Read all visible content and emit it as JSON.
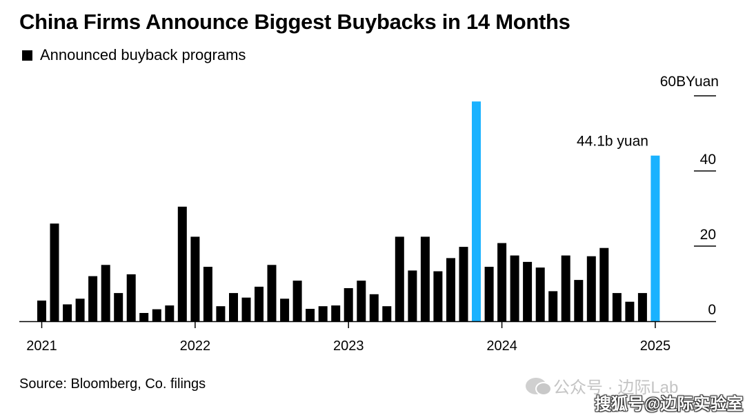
{
  "chart_data": {
    "type": "bar",
    "title": "China Firms Announce Biggest Buybacks in 14 Months",
    "legend": "Announced buyback programs",
    "y_unit_label": "60BYuan",
    "y_ticks": [
      {
        "value": 0,
        "label": "0"
      },
      {
        "value": 20,
        "label": "20"
      },
      {
        "value": 40,
        "label": "40"
      },
      {
        "value": 60,
        "label": ""
      }
    ],
    "ylim": [
      0,
      60
    ],
    "x_year_labels": [
      {
        "index": 0,
        "label": "2021"
      },
      {
        "index": 12,
        "label": "2022"
      },
      {
        "index": 24,
        "label": "2023"
      },
      {
        "index": 36,
        "label": "2024"
      },
      {
        "index": 48,
        "label": "2025"
      }
    ],
    "values": [
      5.5,
      26,
      4.5,
      6,
      12,
      15,
      7.5,
      12.5,
      2.2,
      3.2,
      4.2,
      30.5,
      22.5,
      14.5,
      4,
      7.5,
      6.3,
      9.2,
      15,
      6,
      10.8,
      3.3,
      4,
      4.2,
      8.8,
      10.8,
      7.2,
      4,
      22.5,
      13.5,
      22.5,
      13.3,
      16.8,
      19.8,
      58.5,
      14.5,
      20.8,
      17.5,
      15.8,
      14.3,
      8,
      17.5,
      11,
      17.3,
      19.5,
      7.5,
      5.2,
      7.5,
      44.1
    ],
    "highlight_indices": [
      34,
      48
    ],
    "bar_color": "#000000",
    "highlight_color": "#1ab2ff",
    "annotation": {
      "index": 48,
      "text": "44.1b yuan"
    },
    "grid": false
  },
  "source": "Source: Bloomberg, Co. filings",
  "watermark": {
    "line1": "公众号 · 边际Lab",
    "line2": "搜狐号@边际实验室"
  }
}
